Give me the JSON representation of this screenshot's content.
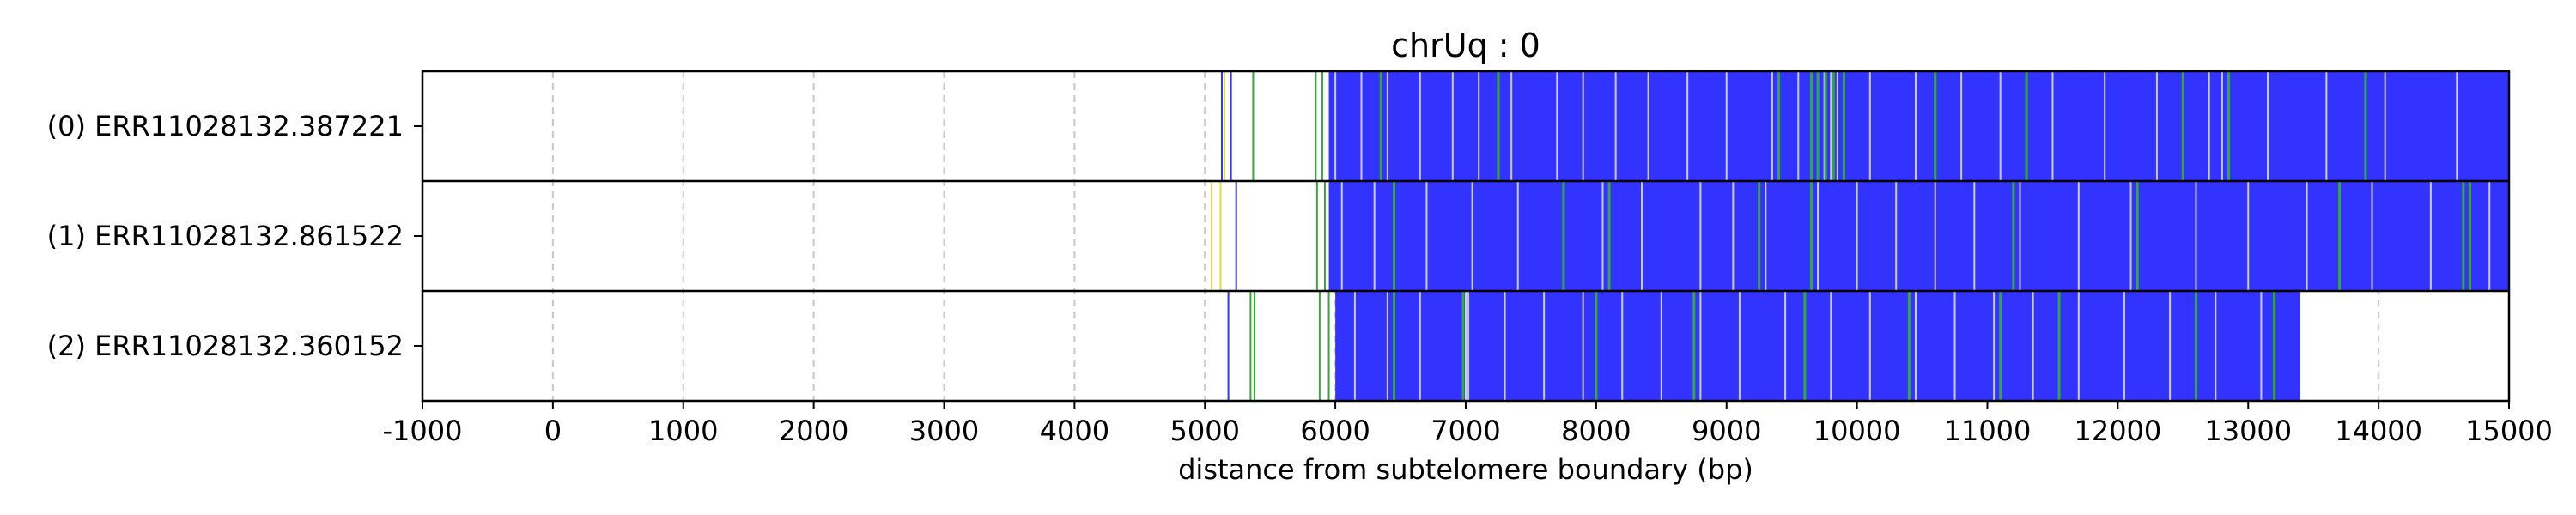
{
  "chart_data": {
    "type": "heatmap",
    "title": "chrUq : 0",
    "xlabel": "distance from subtelomere boundary (bp)",
    "ylabel": "",
    "xlim": [
      -1000,
      15000
    ],
    "xticks": [
      -1000,
      0,
      1000,
      2000,
      3000,
      4000,
      5000,
      6000,
      7000,
      8000,
      9000,
      10000,
      11000,
      12000,
      13000,
      14000,
      15000
    ],
    "grid": {
      "x": true,
      "style": "dashed"
    },
    "colors": {
      "dense": "#3333ff",
      "blue_mark": "#3333ff",
      "green_mark": "#33aa33",
      "yellow_mark": "#dddd44",
      "white_gap": "#ffffff"
    },
    "reads": [
      {
        "label": "(0) ERR11028132.387221",
        "start": 5950,
        "end": 15000,
        "sparse_marks": [
          {
            "pos": 5130,
            "color": "blue"
          },
          {
            "pos": 5150,
            "color": "yellow"
          },
          {
            "pos": 5200,
            "color": "blue"
          },
          {
            "pos": 5370,
            "color": "green"
          },
          {
            "pos": 5850,
            "color": "green"
          },
          {
            "pos": 5900,
            "color": "green"
          }
        ],
        "gaps": [
          6000,
          6200,
          6400,
          6650,
          6900,
          7100,
          7350,
          7700,
          7900,
          8150,
          8400,
          8700,
          9000,
          9350,
          9550,
          9700,
          9750,
          9800,
          9850,
          10100,
          10450,
          10800,
          11100,
          11500,
          11900,
          12300,
          12700,
          12800,
          13150,
          13600,
          14050,
          14600
        ],
        "green_lines": [
          6350,
          7250,
          9400,
          9650,
          9700,
          9760,
          9820,
          9900,
          10600,
          11300,
          12500,
          12850,
          13900
        ]
      },
      {
        "label": "(1) ERR11028132.861522",
        "start": 5950,
        "end": 15000,
        "sparse_marks": [
          {
            "pos": 5050,
            "color": "yellow"
          },
          {
            "pos": 5120,
            "color": "yellow"
          },
          {
            "pos": 5240,
            "color": "blue"
          },
          {
            "pos": 5860,
            "color": "green"
          },
          {
            "pos": 5920,
            "color": "green"
          }
        ],
        "gaps": [
          6050,
          6300,
          6700,
          7050,
          7400,
          7750,
          8050,
          8350,
          8800,
          9050,
          9300,
          9700,
          10000,
          10300,
          10600,
          10900,
          11250,
          11700,
          12100,
          12600,
          13000,
          13450,
          13950,
          14400,
          14850
        ],
        "green_lines": [
          6450,
          7750,
          8100,
          9250,
          9650,
          11200,
          12150,
          13700,
          14650,
          14700
        ]
      },
      {
        "label": "(2) ERR11028132.360152",
        "start": 6000,
        "end": 13400,
        "sparse_marks": [
          {
            "pos": 5180,
            "color": "blue"
          },
          {
            "pos": 5350,
            "color": "green"
          },
          {
            "pos": 5380,
            "color": "green"
          },
          {
            "pos": 5880,
            "color": "green"
          },
          {
            "pos": 5950,
            "color": "green"
          }
        ],
        "gaps": [
          6150,
          6400,
          6650,
          7000,
          7020,
          7300,
          7600,
          7900,
          8200,
          8500,
          8800,
          9100,
          9450,
          9800,
          10100,
          10450,
          10750,
          11050,
          11350,
          11700,
          12050,
          12400,
          12750,
          13100
        ],
        "green_lines": [
          6450,
          6980,
          8000,
          8750,
          9600,
          10400,
          11100,
          11550,
          12600,
          13200
        ]
      }
    ]
  }
}
